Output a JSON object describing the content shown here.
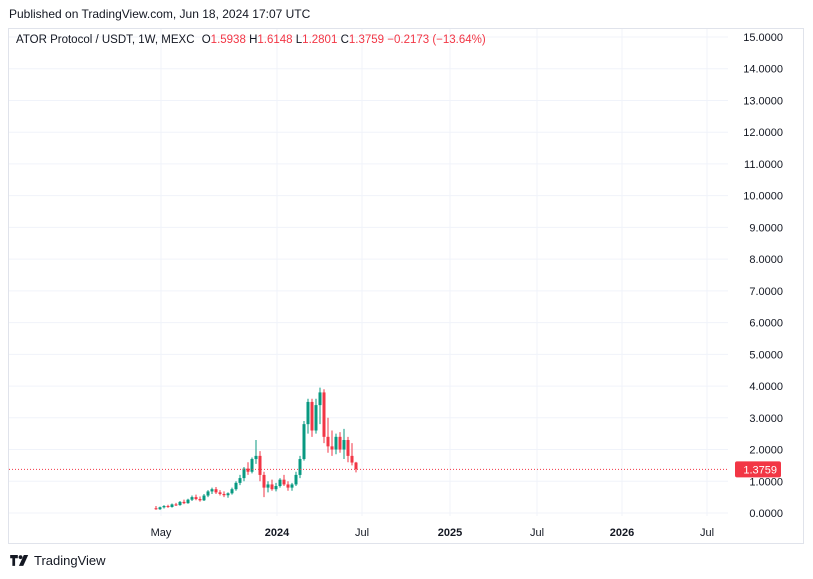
{
  "header": {
    "published": "Published on TradingView.com, Jun 18, 2024 17:07 UTC"
  },
  "legend": {
    "symbol": "ATOR Protocol / USDT, 1W, MEXC",
    "o_label": "O",
    "o": "1.5938",
    "h_label": "H",
    "h": "1.6148",
    "l_label": "L",
    "l": "1.2801",
    "c_label": "C",
    "c": "1.3759",
    "change": "−0.2173 (−13.64%)"
  },
  "footer": {
    "brand": "TradingView",
    "logo_icon": "tradingview-logo-icon"
  },
  "colors": {
    "up": "#089981",
    "down": "#f23645",
    "price_line": "#f23645",
    "grid": "#f0f3fa",
    "axis_text": "#131722"
  },
  "chart_data": {
    "type": "candlestick",
    "title": "ATOR Protocol / USDT, 1W, MEXC",
    "ylim": [
      0,
      15
    ],
    "y_ticks": [
      "15.0000",
      "14.0000",
      "13.0000",
      "12.0000",
      "11.0000",
      "10.0000",
      "9.0000",
      "8.0000",
      "7.0000",
      "6.0000",
      "5.0000",
      "4.0000",
      "3.0000",
      "2.0000",
      "1.0000",
      "0.0000"
    ],
    "x_ticks": [
      "May",
      "2024",
      "Jul",
      "2025",
      "Jul",
      "2026",
      "Jul"
    ],
    "last_price": "1.3759",
    "series": [
      {
        "name": "ATOR Protocol / USDT",
        "ohlc": [
          [
            0.15,
            0.22,
            0.1,
            0.12
          ],
          [
            0.12,
            0.2,
            0.1,
            0.18
          ],
          [
            0.18,
            0.25,
            0.14,
            0.22
          ],
          [
            0.22,
            0.26,
            0.16,
            0.19
          ],
          [
            0.19,
            0.3,
            0.17,
            0.27
          ],
          [
            0.27,
            0.32,
            0.22,
            0.25
          ],
          [
            0.25,
            0.38,
            0.23,
            0.35
          ],
          [
            0.35,
            0.42,
            0.28,
            0.31
          ],
          [
            0.31,
            0.45,
            0.29,
            0.42
          ],
          [
            0.42,
            0.55,
            0.38,
            0.5
          ],
          [
            0.5,
            0.58,
            0.4,
            0.44
          ],
          [
            0.44,
            0.52,
            0.36,
            0.4
          ],
          [
            0.4,
            0.6,
            0.38,
            0.55
          ],
          [
            0.55,
            0.72,
            0.5,
            0.68
          ],
          [
            0.68,
            0.8,
            0.6,
            0.75
          ],
          [
            0.75,
            0.82,
            0.6,
            0.65
          ],
          [
            0.65,
            0.72,
            0.55,
            0.6
          ],
          [
            0.6,
            0.68,
            0.5,
            0.56
          ],
          [
            0.56,
            0.65,
            0.48,
            0.62
          ],
          [
            0.62,
            0.8,
            0.58,
            0.75
          ],
          [
            0.75,
            1.0,
            0.7,
            0.95
          ],
          [
            0.95,
            1.2,
            0.88,
            1.1
          ],
          [
            1.1,
            1.45,
            1.0,
            1.4
          ],
          [
            1.4,
            1.6,
            1.2,
            1.3
          ],
          [
            1.3,
            1.75,
            1.25,
            1.7
          ],
          [
            1.7,
            2.3,
            1.55,
            1.8
          ],
          [
            1.8,
            1.95,
            1.0,
            1.2
          ],
          [
            1.2,
            1.3,
            0.5,
            0.8
          ],
          [
            0.8,
            1.0,
            0.65,
            0.9
          ],
          [
            0.9,
            1.05,
            0.7,
            0.75
          ],
          [
            0.75,
            0.95,
            0.68,
            0.85
          ],
          [
            0.85,
            1.1,
            0.8,
            1.05
          ],
          [
            1.05,
            1.2,
            0.85,
            0.9
          ],
          [
            0.9,
            1.0,
            0.7,
            0.8
          ],
          [
            0.8,
            0.95,
            0.7,
            0.9
          ],
          [
            0.9,
            1.3,
            0.85,
            1.2
          ],
          [
            1.2,
            1.8,
            1.1,
            1.7
          ],
          [
            1.7,
            2.9,
            1.65,
            2.8
          ],
          [
            2.8,
            3.6,
            2.5,
            3.5
          ],
          [
            3.5,
            3.6,
            2.4,
            2.6
          ],
          [
            2.6,
            3.6,
            2.5,
            3.4
          ],
          [
            3.4,
            3.95,
            2.8,
            3.8
          ],
          [
            3.8,
            3.9,
            2.2,
            2.4
          ],
          [
            2.4,
            3.0,
            1.9,
            2.1
          ],
          [
            2.1,
            2.6,
            1.8,
            2.0
          ],
          [
            2.0,
            2.5,
            1.85,
            2.4
          ],
          [
            2.4,
            2.55,
            1.9,
            2.0
          ],
          [
            2.0,
            2.65,
            1.7,
            2.3
          ],
          [
            2.3,
            2.4,
            1.6,
            1.8
          ],
          [
            1.8,
            2.2,
            1.5,
            1.59
          ],
          [
            1.59,
            1.61,
            1.28,
            1.38
          ]
        ]
      }
    ]
  }
}
